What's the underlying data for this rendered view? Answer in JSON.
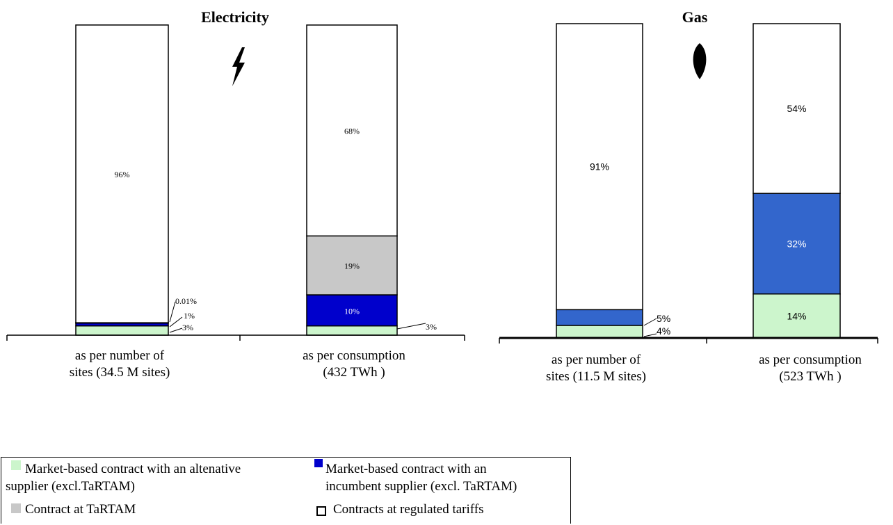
{
  "chart_data": [
    {
      "type": "bar",
      "stacked": true,
      "title": "Electricity",
      "icon": "lightning-icon",
      "categories": [
        "as per number of sites (34.5 M sites)",
        "as per consumption (432 TWh )"
      ],
      "category_lines": [
        [
          "as per number of",
          "sites (34.5 M sites)"
        ],
        [
          "as per consumption",
          "(432 TWh )"
        ]
      ],
      "series": [
        {
          "name": "Market-based contract with an altenative supplier (excl.TaRTAM)",
          "color": "#ccf5cc",
          "values": [
            3,
            3
          ],
          "labels": [
            "3%",
            "3%"
          ]
        },
        {
          "name": "Market-based contract with an incumbent supplier (excl. TaRTAM)",
          "color": "#0000cc",
          "values": [
            1,
            10
          ],
          "labels": [
            "1%",
            "10%"
          ]
        },
        {
          "name": "Contract at TaRTAM",
          "color": "#c8c8c8",
          "values": [
            0.01,
            19
          ],
          "labels": [
            "0.01%",
            "19%"
          ]
        },
        {
          "name": "Contracts at regulated tariffs",
          "color": "#ffffff",
          "values": [
            96,
            68
          ],
          "labels": [
            "96%",
            "68%"
          ]
        }
      ],
      "ylim": [
        0,
        100
      ]
    },
    {
      "type": "bar",
      "stacked": true,
      "title": "Gas",
      "icon": "gas-flame-icon",
      "categories": [
        "as per number of sites (11.5 M sites)",
        "as per consumption (523 TWh )"
      ],
      "category_lines": [
        [
          "as per number of",
          "sites (11.5 M sites)"
        ],
        [
          "as per consumption",
          "(523 TWh )"
        ]
      ],
      "series": [
        {
          "name": "Market-based contract with an altenative supplier (excl.TaRTAM)",
          "color": "#ccf5cc",
          "values": [
            4,
            14
          ],
          "labels": [
            "4%",
            "14%"
          ]
        },
        {
          "name": "Market-based contract with an incumbent supplier (excl. TaRTAM)",
          "color": "#3366cc",
          "values": [
            5,
            32
          ],
          "labels": [
            "5%",
            "32%"
          ]
        },
        {
          "name": "Contracts at regulated tariffs",
          "color": "#ffffff",
          "values": [
            91,
            54
          ],
          "labels": [
            "91%",
            "54%"
          ]
        }
      ],
      "ylim": [
        0,
        100
      ]
    }
  ],
  "legend": {
    "items": [
      {
        "lines": [
          "Market-based contract with an altenative",
          "supplier (excl.TaRTAM)"
        ],
        "color": "#ccf5cc",
        "style": "fill"
      },
      {
        "lines": [
          "Market-based contract with an",
          "incumbent supplier (excl. TaRTAM)"
        ],
        "color": "#0000cc",
        "style": "fill"
      },
      {
        "lines": [
          "Contract at TaRTAM"
        ],
        "color": "#c8c8c8",
        "style": "fill"
      },
      {
        "lines": [
          "Contracts at regulated tariffs"
        ],
        "color": "#ffffff",
        "style": "outline"
      }
    ]
  }
}
